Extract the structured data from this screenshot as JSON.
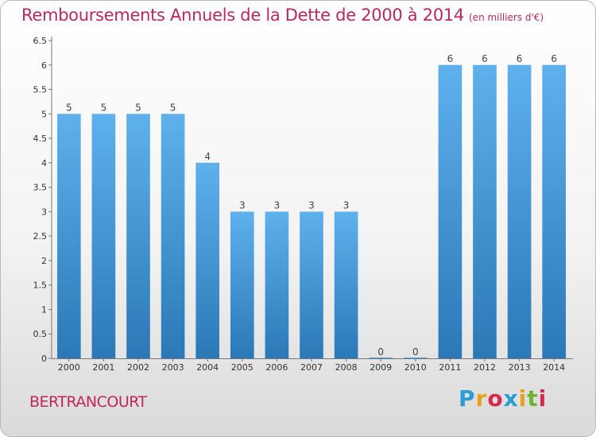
{
  "chart_data": {
    "type": "bar",
    "title": "Remboursements Annuels de la Dette de 2000 à 2014",
    "subtitle": "(en milliers d'€)",
    "categories": [
      "2000",
      "2001",
      "2002",
      "2003",
      "2004",
      "2005",
      "2006",
      "2007",
      "2008",
      "2009",
      "2010",
      "2011",
      "2012",
      "2013",
      "2014"
    ],
    "values": [
      5,
      5,
      5,
      5,
      4,
      3,
      3,
      3,
      3,
      0,
      0,
      6,
      6,
      6,
      6
    ],
    "data_labels": [
      "5",
      "5",
      "5",
      "5",
      "4",
      "3",
      "3",
      "3",
      "3",
      "0",
      "0",
      "6",
      "6",
      "6",
      "6"
    ],
    "ylim": [
      0,
      6.5
    ],
    "yticks": [
      "0",
      "0.5",
      "1",
      "1.5",
      "2",
      "2.5",
      "3",
      "3.5",
      "4",
      "4.5",
      "5",
      "5.5",
      "6",
      "6.5"
    ],
    "grid": false,
    "bar_color": "#4a9fe0",
    "title_color": "#c0265e"
  },
  "footer": {
    "commune": "BERTRANCOURT",
    "logo_letters": [
      "P",
      "r",
      "o",
      "x",
      "i",
      "t",
      "i"
    ],
    "logo_colors": [
      "#2b9bd6",
      "#e8a21a",
      "#d8284b",
      "#2b9bd6",
      "#e8a21a",
      "#6bb430",
      "#d8284b"
    ]
  }
}
